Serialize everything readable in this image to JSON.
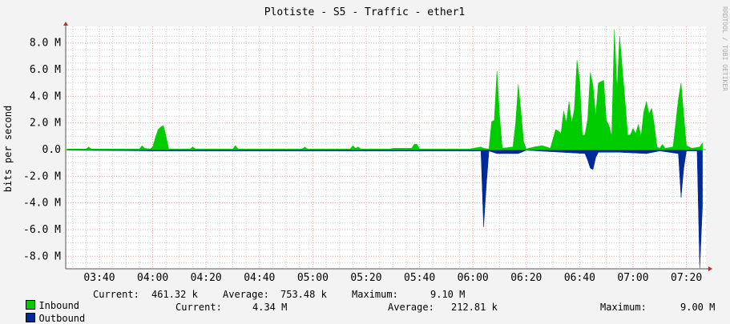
{
  "chart_data": {
    "type": "area",
    "title": "Plotiste - S5 - Traffic - ether1",
    "ylabel": "bits per second",
    "xlabel": "",
    "watermark": "RRDTOOL / TOBI OETIKER",
    "xlim": [
      "03:27",
      "07:27"
    ],
    "ylim": [
      -9.0,
      9.2
    ],
    "y_unit": "M",
    "grid": true,
    "yticks": [
      {
        "v": 8,
        "label": "8.0 M"
      },
      {
        "v": 6,
        "label": "6.0 M"
      },
      {
        "v": 4,
        "label": "4.0 M"
      },
      {
        "v": 2,
        "label": "2.0 M"
      },
      {
        "v": 0,
        "label": "0.0"
      },
      {
        "v": -2,
        "label": "-2.0 M"
      },
      {
        "v": -4,
        "label": "-4.0 M"
      },
      {
        "v": -6,
        "label": "-6.0 M"
      },
      {
        "v": -8,
        "label": "-8.0 M"
      }
    ],
    "xticks": [
      "03:40",
      "04:00",
      "04:20",
      "04:40",
      "05:00",
      "05:20",
      "05:40",
      "06:00",
      "06:20",
      "06:40",
      "07:00",
      "07:20"
    ],
    "series": [
      {
        "name": "Inbound",
        "color": "#00cc00",
        "points": [
          [
            "03:28",
            0.05
          ],
          [
            "03:35",
            0.05
          ],
          [
            "03:36",
            0.2
          ],
          [
            "03:37",
            0.05
          ],
          [
            "03:55",
            0.05
          ],
          [
            "03:56",
            0.3
          ],
          [
            "03:57",
            0.1
          ],
          [
            "03:59",
            0.05
          ],
          [
            "04:00",
            0.2
          ],
          [
            "04:01",
            0.9
          ],
          [
            "04:02",
            1.5
          ],
          [
            "04:03",
            1.7
          ],
          [
            "04:04",
            1.8
          ],
          [
            "04:05",
            1.0
          ],
          [
            "04:06",
            0.05
          ],
          [
            "04:14",
            0.05
          ],
          [
            "04:15",
            0.2
          ],
          [
            "04:16",
            0.05
          ],
          [
            "04:30",
            0.05
          ],
          [
            "04:31",
            0.3
          ],
          [
            "04:32",
            0.05
          ],
          [
            "04:56",
            0.05
          ],
          [
            "04:57",
            0.2
          ],
          [
            "04:58",
            0.05
          ],
          [
            "05:14",
            0.05
          ],
          [
            "05:15",
            0.3
          ],
          [
            "05:16",
            0.1
          ],
          [
            "05:17",
            0.2
          ],
          [
            "05:18",
            0.05
          ],
          [
            "05:29",
            0.05
          ],
          [
            "05:30",
            0.1
          ],
          [
            "05:37",
            0.1
          ],
          [
            "05:38",
            0.4
          ],
          [
            "05:39",
            0.4
          ],
          [
            "05:40",
            0.05
          ],
          [
            "05:59",
            0.05
          ],
          [
            "06:00",
            0.1
          ],
          [
            "06:03",
            0.2
          ],
          [
            "06:04",
            0.1
          ],
          [
            "06:06",
            0.05
          ],
          [
            "06:07",
            2.1
          ],
          [
            "06:08",
            2.2
          ],
          [
            "06:09",
            5.9
          ],
          [
            "06:10",
            2.5
          ],
          [
            "06:11",
            0.1
          ],
          [
            "06:15",
            0.2
          ],
          [
            "06:16",
            2.0
          ],
          [
            "06:17",
            4.9
          ],
          [
            "06:18",
            2.8
          ],
          [
            "06:19",
            0.6
          ],
          [
            "06:20",
            0.05
          ],
          [
            "06:23",
            0.2
          ],
          [
            "06:26",
            0.3
          ],
          [
            "06:29",
            0.1
          ],
          [
            "06:31",
            1.5
          ],
          [
            "06:32",
            1.4
          ],
          [
            "06:33",
            1.2
          ],
          [
            "06:34",
            2.9
          ],
          [
            "06:35",
            2.0
          ],
          [
            "06:36",
            3.6
          ],
          [
            "06:37",
            2.0
          ],
          [
            "06:38",
            3.0
          ],
          [
            "06:39",
            6.7
          ],
          [
            "06:40",
            5.2
          ],
          [
            "06:41",
            1.1
          ],
          [
            "06:42",
            1.1
          ],
          [
            "06:43",
            2.3
          ],
          [
            "06:44",
            5.8
          ],
          [
            "06:45",
            4.8
          ],
          [
            "06:46",
            2.5
          ],
          [
            "06:47",
            5.0
          ],
          [
            "06:48",
            5.1
          ],
          [
            "06:49",
            5.2
          ],
          [
            "06:50",
            2.2
          ],
          [
            "06:51",
            1.8
          ],
          [
            "06:52",
            1.0
          ],
          [
            "06:53",
            9.0
          ],
          [
            "06:54",
            4.5
          ],
          [
            "06:55",
            8.5
          ],
          [
            "06:56",
            6.0
          ],
          [
            "06:57",
            3.7
          ],
          [
            "06:58",
            1.1
          ],
          [
            "06:59",
            1.1
          ],
          [
            "07:00",
            1.6
          ],
          [
            "07:01",
            1.2
          ],
          [
            "07:02",
            1.9
          ],
          [
            "07:03",
            1.0
          ],
          [
            "07:04",
            2.8
          ],
          [
            "07:05",
            3.6
          ],
          [
            "07:06",
            2.7
          ],
          [
            "07:07",
            3.1
          ],
          [
            "07:08",
            1.8
          ],
          [
            "07:09",
            0.2
          ],
          [
            "07:10",
            0.1
          ],
          [
            "07:11",
            0.4
          ],
          [
            "07:12",
            0.1
          ],
          [
            "07:15",
            0.2
          ],
          [
            "07:16",
            2.0
          ],
          [
            "07:17",
            3.8
          ],
          [
            "07:18",
            5.0
          ],
          [
            "07:19",
            2.6
          ],
          [
            "07:20",
            0.3
          ],
          [
            "07:22",
            0.1
          ],
          [
            "07:25",
            0.2
          ],
          [
            "07:26",
            0.5
          ]
        ]
      },
      {
        "name": "Outbound",
        "color": "#002a97",
        "points": [
          [
            "03:28",
            -0.05
          ],
          [
            "04:02",
            -0.1
          ],
          [
            "04:05",
            -0.1
          ],
          [
            "06:03",
            -0.1
          ],
          [
            "06:04",
            -5.8
          ],
          [
            "06:05",
            -2.7
          ],
          [
            "06:06",
            -0.1
          ],
          [
            "06:09",
            -0.3
          ],
          [
            "06:17",
            -0.3
          ],
          [
            "06:20",
            -0.05
          ],
          [
            "06:42",
            -0.3
          ],
          [
            "06:43",
            -0.8
          ],
          [
            "06:44",
            -1.4
          ],
          [
            "06:45",
            -1.5
          ],
          [
            "06:46",
            -0.6
          ],
          [
            "06:47",
            -0.2
          ],
          [
            "06:55",
            -0.2
          ],
          [
            "07:05",
            -0.3
          ],
          [
            "07:10",
            -0.1
          ],
          [
            "07:17",
            -0.3
          ],
          [
            "07:18",
            -3.6
          ],
          [
            "07:19",
            -1.4
          ],
          [
            "07:20",
            -0.1
          ],
          [
            "07:24",
            -0.1
          ],
          [
            "07:25",
            -8.9
          ],
          [
            "07:26",
            -4.3
          ]
        ]
      }
    ],
    "legend": {
      "placement": "bottom-left",
      "inbound": {
        "label": "Inbound",
        "current_label": "Current:",
        "current": "461.32 k",
        "average_label": "Average:",
        "average": "753.48 k",
        "maximum_label": "Maximum:",
        "maximum": "9.10 M"
      },
      "outbound": {
        "label": "Outbound",
        "current_label": "Current:",
        "current": "4.34 M",
        "average_label": "Average:",
        "average": "212.81 k",
        "maximum_label": "Maximum:",
        "maximum": "9.00 M"
      }
    }
  }
}
